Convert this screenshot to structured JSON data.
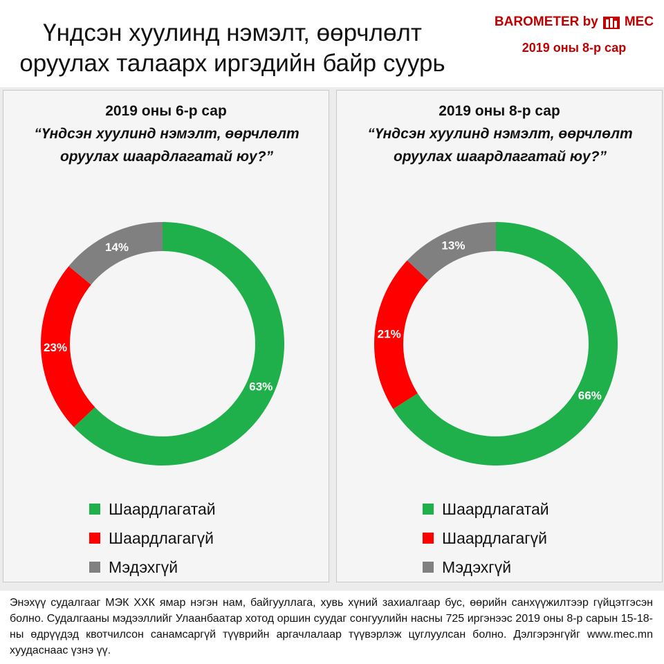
{
  "title": "Үндсэн хуулинд нэмэлт, өөрчлөлт оруулах талаарх иргэдийн байр суурь",
  "brand": {
    "prefix": "BAROMETER by",
    "name": "MEC",
    "date": "2019 оны 8-р сар"
  },
  "colors": {
    "required": "#1fb04b",
    "not_required": "#ff0000",
    "dont_know": "#808080"
  },
  "chart_data": [
    {
      "type": "pie",
      "title": "2019 оны 6-р сар",
      "subtitle": "“Үндсэн хуулинд нэмэлт, өөрчлөлт оруулах шаардлагатай юу?”",
      "categories": [
        "Шаардлагатай",
        "Шаардлагагүй",
        "Мэдэхгүй"
      ],
      "values": [
        63,
        23,
        14
      ],
      "data_labels": [
        "63%",
        "23%",
        "14%"
      ],
      "colors": [
        "#1fb04b",
        "#ff0000",
        "#808080"
      ],
      "legend": "bottom"
    },
    {
      "type": "pie",
      "title": "2019 оны 8-р сар",
      "subtitle": "“Үндсэн хуулинд нэмэлт, өөрчлөлт оруулах шаардлагатай юу?”",
      "categories": [
        "Шаардлагатай",
        "Шаардлагагүй",
        "Мэдэхгүй"
      ],
      "values": [
        66,
        21,
        13
      ],
      "data_labels": [
        "66%",
        "21%",
        "13%"
      ],
      "colors": [
        "#1fb04b",
        "#ff0000",
        "#808080"
      ],
      "legend": "bottom"
    }
  ],
  "footer": "Энэхүү судалгааг МЭК ХХК ямар нэгэн нам, байгууллага, хувь хүний захиалгаар бус, өөрийн санхүүжилтээр гүйцэтгэсэн болно. Судалгааны мэдээллийг Улаанбаатар хотод оршин суудаг сонгуулийн насны 725 иргэнээс 2019 оны 8-р сарын 15-18-ны өдрүүдэд квотчилсон санамсаргүй түүврийн аргачлалаар түүвэрлэж цуглуулсан болно. Дэлгэрэнгүйг www.mec.mn хуудаснаас үзнэ үү."
}
